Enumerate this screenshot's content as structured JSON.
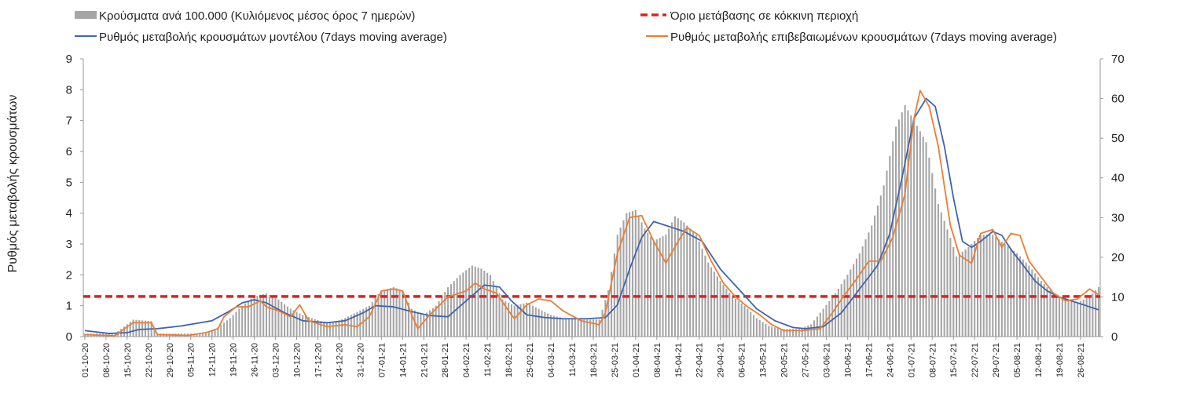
{
  "chart_data": {
    "type": "bar-line-combo",
    "title": "",
    "ylabel_left": "Ρυθμός μεταβολής κρουσμάτων",
    "ylabel_right": "",
    "ylim_left": [
      0,
      9
    ],
    "ylim_right": [
      0,
      70
    ],
    "yticks_left": [
      "0",
      "1",
      "2",
      "3",
      "4",
      "5",
      "6",
      "7",
      "8",
      "9"
    ],
    "yticks_right": [
      "0",
      "10",
      "20",
      "30",
      "40",
      "50",
      "60",
      "70"
    ],
    "x_tick_labels": [
      "01-10-20",
      "08-10-20",
      "15-10-20",
      "22-10-20",
      "29-10-20",
      "05-11-20",
      "12-11-20",
      "19-11-20",
      "26-11-20",
      "03-12-20",
      "10-12-20",
      "17-12-20",
      "24-12-20",
      "31-12-20",
      "07-01-21",
      "14-01-21",
      "21-01-21",
      "28-01-21",
      "04-02-21",
      "11-02-21",
      "18-02-21",
      "25-02-21",
      "04-03-21",
      "11-03-21",
      "18-03-21",
      "25-03-21",
      "01-04-21",
      "08-04-21",
      "15-04-21",
      "22-04-21",
      "29-04-21",
      "06-05-21",
      "13-05-21",
      "20-05-21",
      "27-05-21",
      "03-06-21",
      "10-06-21",
      "17-06-21",
      "24-06-21",
      "01-07-21",
      "08-07-21",
      "15-07-21",
      "22-07-21",
      "29-07-21",
      "05-08-21",
      "12-08-21",
      "19-08-21",
      "26-08-21"
    ],
    "n_days": 336,
    "legend": {
      "bars": "Κρούσματα ανά 100.000 (Κυλιόμενος μέσος όρος 7 ημερών)",
      "threshold": "Όριο μετάβασης σε κόκκινη περιοχή",
      "model": "Ρυθμός μεταβολής κρουσμάτων μοντέλου (7days moving average)",
      "confirmed": "Ρυθμός μεταβολής επιβεβαιωμένων κρουσμάτων (7days moving average)"
    },
    "series": [
      {
        "name": "Κρούσματα ανά 100.000 (Κυλιόμενος μέσος όρος 7 ημερών)",
        "type": "bar",
        "axis": "left",
        "color": "#a6a6a6",
        "key_points": [
          [
            0,
            0.1
          ],
          [
            10,
            0.1
          ],
          [
            14,
            0.4
          ],
          [
            16,
            0.55
          ],
          [
            22,
            0.5
          ],
          [
            24,
            0.1
          ],
          [
            30,
            0.1
          ],
          [
            40,
            0.1
          ],
          [
            44,
            0.3
          ],
          [
            48,
            0.6
          ],
          [
            52,
            1.0
          ],
          [
            56,
            1.3
          ],
          [
            60,
            1.4
          ],
          [
            64,
            1.2
          ],
          [
            68,
            0.9
          ],
          [
            72,
            0.7
          ],
          [
            78,
            0.5
          ],
          [
            82,
            0.45
          ],
          [
            86,
            0.6
          ],
          [
            90,
            0.8
          ],
          [
            94,
            1.0
          ],
          [
            98,
            1.5
          ],
          [
            102,
            1.6
          ],
          [
            105,
            1.5
          ],
          [
            108,
            0.9
          ],
          [
            112,
            0.7
          ],
          [
            116,
            1.0
          ],
          [
            120,
            1.6
          ],
          [
            124,
            2.0
          ],
          [
            128,
            2.3
          ],
          [
            131,
            2.2
          ],
          [
            134,
            2.0
          ],
          [
            138,
            1.2
          ],
          [
            142,
            1.0
          ],
          [
            146,
            1.1
          ],
          [
            150,
            0.9
          ],
          [
            154,
            0.7
          ],
          [
            158,
            0.6
          ],
          [
            164,
            0.55
          ],
          [
            170,
            0.55
          ],
          [
            173,
            1.5
          ],
          [
            176,
            3.3
          ],
          [
            179,
            4.0
          ],
          [
            182,
            4.1
          ],
          [
            185,
            3.5
          ],
          [
            188,
            3.1
          ],
          [
            192,
            3.3
          ],
          [
            195,
            3.9
          ],
          [
            198,
            3.7
          ],
          [
            202,
            3.3
          ],
          [
            206,
            2.4
          ],
          [
            210,
            1.8
          ],
          [
            214,
            1.3
          ],
          [
            218,
            1.0
          ],
          [
            222,
            0.6
          ],
          [
            226,
            0.35
          ],
          [
            230,
            0.25
          ],
          [
            236,
            0.25
          ],
          [
            240,
            0.4
          ],
          [
            244,
            0.9
          ],
          [
            248,
            1.4
          ],
          [
            252,
            2.0
          ],
          [
            256,
            2.7
          ],
          [
            260,
            3.6
          ],
          [
            264,
            4.9
          ],
          [
            268,
            6.8
          ],
          [
            271,
            7.5
          ],
          [
            274,
            7.0
          ],
          [
            278,
            6.3
          ],
          [
            282,
            4.3
          ],
          [
            286,
            3.2
          ],
          [
            288,
            2.6
          ],
          [
            292,
            2.9
          ],
          [
            296,
            3.3
          ],
          [
            300,
            3.3
          ],
          [
            304,
            3.0
          ],
          [
            308,
            2.7
          ],
          [
            312,
            2.3
          ],
          [
            316,
            1.8
          ],
          [
            320,
            1.4
          ],
          [
            324,
            1.2
          ],
          [
            328,
            1.1
          ],
          [
            332,
            1.3
          ],
          [
            335,
            1.6
          ]
        ]
      },
      {
        "name": "Ρυθμός μεταβολής κρουσμάτων μοντέλου (7days moving average)",
        "type": "line",
        "axis": "right",
        "color": "#3f64b0",
        "key_points": [
          [
            0,
            1.5
          ],
          [
            8,
            0.8
          ],
          [
            14,
            1.0
          ],
          [
            18,
            1.8
          ],
          [
            24,
            2.0
          ],
          [
            32,
            2.7
          ],
          [
            42,
            4.0
          ],
          [
            48,
            6.5
          ],
          [
            52,
            8.5
          ],
          [
            56,
            9.3
          ],
          [
            60,
            8.5
          ],
          [
            66,
            6.0
          ],
          [
            72,
            4.0
          ],
          [
            80,
            3.5
          ],
          [
            86,
            4.0
          ],
          [
            92,
            6.0
          ],
          [
            96,
            7.8
          ],
          [
            102,
            7.5
          ],
          [
            108,
            6.3
          ],
          [
            114,
            5.3
          ],
          [
            120,
            5.0
          ],
          [
            126,
            9.0
          ],
          [
            132,
            13.0
          ],
          [
            137,
            12.5
          ],
          [
            141,
            9.0
          ],
          [
            146,
            5.5
          ],
          [
            152,
            4.8
          ],
          [
            158,
            4.5
          ],
          [
            166,
            4.5
          ],
          [
            172,
            4.8
          ],
          [
            176,
            8.0
          ],
          [
            180,
            17.0
          ],
          [
            184,
            25.0
          ],
          [
            188,
            29.0
          ],
          [
            192,
            28.0
          ],
          [
            198,
            26.5
          ],
          [
            204,
            24.0
          ],
          [
            210,
            17.0
          ],
          [
            216,
            12.0
          ],
          [
            222,
            7.0
          ],
          [
            228,
            4.0
          ],
          [
            234,
            2.3
          ],
          [
            238,
            2.0
          ],
          [
            244,
            2.5
          ],
          [
            250,
            6.0
          ],
          [
            256,
            12.0
          ],
          [
            262,
            18.0
          ],
          [
            266,
            26.0
          ],
          [
            270,
            40.0
          ],
          [
            274,
            55.0
          ],
          [
            278,
            60.0
          ],
          [
            281,
            58.0
          ],
          [
            284,
            48.0
          ],
          [
            287,
            35.0
          ],
          [
            290,
            24.0
          ],
          [
            293,
            22.5
          ],
          [
            296,
            24.0
          ],
          [
            300,
            26.5
          ],
          [
            303,
            25.5
          ],
          [
            306,
            22.0
          ],
          [
            310,
            18.0
          ],
          [
            314,
            14.0
          ],
          [
            318,
            11.5
          ],
          [
            322,
            10.0
          ],
          [
            328,
            8.5
          ],
          [
            334,
            7.0
          ],
          [
            336,
            6.5
          ]
        ]
      },
      {
        "name": "Ρυθμός μεταβολής επιβεβαιωμένων κρουσμάτων (7days moving average)",
        "type": "line",
        "axis": "right",
        "color": "#ed7d31",
        "key_points": [
          [
            0,
            0.5
          ],
          [
            10,
            0.2
          ],
          [
            14,
            2.5
          ],
          [
            16,
            3.5
          ],
          [
            22,
            3.5
          ],
          [
            24,
            0.5
          ],
          [
            34,
            0.3
          ],
          [
            40,
            1.0
          ],
          [
            44,
            2.0
          ],
          [
            46,
            5.0
          ],
          [
            50,
            7.5
          ],
          [
            54,
            7.5
          ],
          [
            58,
            9.0
          ],
          [
            60,
            7.5
          ],
          [
            64,
            6.5
          ],
          [
            68,
            5.0
          ],
          [
            71,
            8.0
          ],
          [
            74,
            4.0
          ],
          [
            80,
            2.5
          ],
          [
            86,
            3.0
          ],
          [
            90,
            2.5
          ],
          [
            94,
            5.0
          ],
          [
            98,
            11.5
          ],
          [
            102,
            12.0
          ],
          [
            105,
            11.5
          ],
          [
            108,
            5.5
          ],
          [
            110,
            2.0
          ],
          [
            114,
            5.5
          ],
          [
            120,
            10.0
          ],
          [
            126,
            11.5
          ],
          [
            129,
            13.5
          ],
          [
            132,
            12.0
          ],
          [
            136,
            11.0
          ],
          [
            140,
            6.5
          ],
          [
            142,
            4.5
          ],
          [
            146,
            8.0
          ],
          [
            150,
            9.5
          ],
          [
            154,
            9.0
          ],
          [
            158,
            6.5
          ],
          [
            164,
            4.0
          ],
          [
            170,
            3.0
          ],
          [
            172,
            6.0
          ],
          [
            176,
            21.0
          ],
          [
            180,
            30.0
          ],
          [
            184,
            30.5
          ],
          [
            188,
            24.0
          ],
          [
            192,
            18.5
          ],
          [
            196,
            24.0
          ],
          [
            199,
            27.5
          ],
          [
            203,
            25.5
          ],
          [
            207,
            19.0
          ],
          [
            211,
            13.5
          ],
          [
            215,
            10.0
          ],
          [
            219,
            7.5
          ],
          [
            223,
            5.5
          ],
          [
            227,
            3.0
          ],
          [
            231,
            1.5
          ],
          [
            237,
            1.5
          ],
          [
            243,
            2.0
          ],
          [
            247,
            6.0
          ],
          [
            251,
            10.5
          ],
          [
            255,
            14.5
          ],
          [
            259,
            19.0
          ],
          [
            263,
            19.0
          ],
          [
            267,
            25.0
          ],
          [
            271,
            36.0
          ],
          [
            274,
            55.0
          ],
          [
            276,
            62.0
          ],
          [
            279,
            58.0
          ],
          [
            282,
            48.0
          ],
          [
            286,
            28.0
          ],
          [
            289,
            20.5
          ],
          [
            293,
            18.5
          ],
          [
            296,
            26.0
          ],
          [
            300,
            27.0
          ],
          [
            303,
            22.5
          ],
          [
            306,
            26.0
          ],
          [
            309,
            25.5
          ],
          [
            312,
            19.0
          ],
          [
            316,
            15.0
          ],
          [
            320,
            11.0
          ],
          [
            324,
            9.0
          ],
          [
            328,
            9.5
          ],
          [
            332,
            12.0
          ],
          [
            336,
            10.0
          ]
        ]
      },
      {
        "name": "Όριο μετάβασης σε κόκκινη περιοχή",
        "type": "threshold",
        "axis": "left",
        "color": "#e02020",
        "value": 1.3
      }
    ]
  }
}
